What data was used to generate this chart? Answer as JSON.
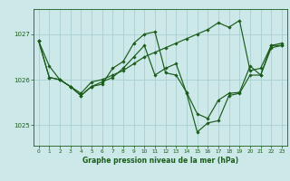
{
  "title": "Graphe pression niveau de la mer (hPa)",
  "bg_color": "#cce8e8",
  "grid_color": "#aacfcf",
  "line_color": "#1a5c1a",
  "marker_color": "#1a5c1a",
  "xlim": [
    -0.5,
    23.5
  ],
  "ylim": [
    1024.55,
    1027.55
  ],
  "yticks": [
    1025,
    1026,
    1027
  ],
  "xticks": [
    0,
    1,
    2,
    3,
    4,
    5,
    6,
    7,
    8,
    9,
    10,
    11,
    12,
    13,
    14,
    15,
    16,
    17,
    18,
    19,
    20,
    21,
    22,
    23
  ],
  "series": [
    [
      1026.85,
      1026.3,
      1026.0,
      1025.85,
      1025.7,
      1025.95,
      1026.0,
      1026.1,
      1026.2,
      1026.35,
      1026.5,
      1026.6,
      1026.7,
      1026.8,
      1026.9,
      1027.0,
      1027.1,
      1027.25,
      1027.15,
      1027.3,
      1026.2,
      1026.25,
      1026.75,
      1026.8
    ],
    [
      1026.85,
      1026.05,
      1026.0,
      1025.85,
      1025.65,
      1025.85,
      1025.95,
      1026.05,
      1026.25,
      1026.5,
      1026.75,
      1026.1,
      1026.25,
      1026.35,
      1025.7,
      1024.85,
      1025.05,
      1025.1,
      1025.65,
      1025.7,
      1026.1,
      1026.1,
      1026.75,
      1026.75
    ],
    [
      1026.85,
      1026.05,
      1026.0,
      1025.85,
      1025.65,
      1025.85,
      1025.9,
      1026.25,
      1026.4,
      1026.8,
      1027.0,
      1027.05,
      1026.15,
      1026.1,
      1025.72,
      1025.25,
      1025.15,
      1025.55,
      1025.7,
      1025.72,
      1026.3,
      1026.1,
      1026.7,
      1026.75
    ]
  ]
}
